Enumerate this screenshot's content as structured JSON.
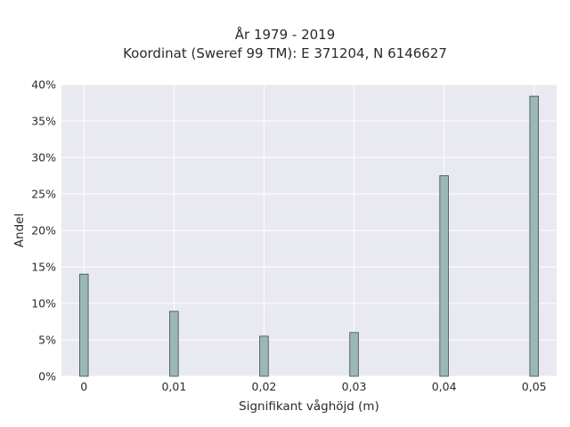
{
  "chart_data": {
    "type": "bar",
    "title_line1": "År 1979 - 2019",
    "title_line2": "Koordinat (Sweref 99 TM): E 371204, N 6146627",
    "xlabel": "Signifikant våghöjd (m)",
    "ylabel": "Andel",
    "x": [
      0,
      0.01,
      0.02,
      0.03,
      0.04,
      0.05
    ],
    "x_tick_labels": [
      "0",
      "0,01",
      "0,02",
      "0,03",
      "0,04",
      "0,05"
    ],
    "values": [
      14.0,
      8.9,
      5.5,
      6.0,
      27.5,
      38.4
    ],
    "y_tick_labels": [
      "0%",
      "5%",
      "10%",
      "15%",
      "20%",
      "25%",
      "30%",
      "35%",
      "40%"
    ],
    "ylim": [
      0,
      40
    ],
    "xlim": [
      -0.0025,
      0.0525
    ],
    "grid": true,
    "colors": {
      "plot_bg": "#e9e9f1",
      "grid": "#ffffff",
      "bar_fill": "#9bb7b7",
      "bar_stroke": "#3a4a4a"
    }
  }
}
